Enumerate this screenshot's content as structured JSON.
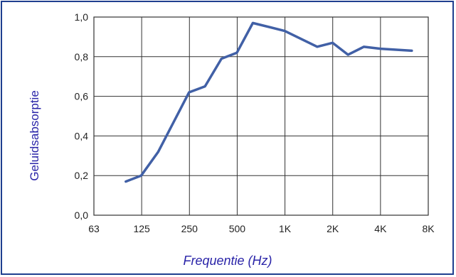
{
  "chart_data": {
    "type": "line",
    "xlabel": "Frequentie (Hz)",
    "ylabel": "Geluidsabsorptie",
    "x_tick_labels": [
      "63",
      "125",
      "250",
      "500",
      "1K",
      "2K",
      "4K",
      "8K"
    ],
    "y_tick_labels": [
      "0,0",
      "0,2",
      "0,4",
      "0,6",
      "0,8",
      "1,0"
    ],
    "x_scale": "log2",
    "xlim": [
      63,
      8000
    ],
    "ylim": [
      0,
      1.0
    ],
    "grid": true,
    "series": [
      {
        "x": [
          100,
          125,
          160,
          200,
          250,
          315,
          400,
          500,
          630,
          1000,
          1600,
          2000,
          2500,
          3150,
          4000,
          6300
        ],
        "values": [
          0.17,
          0.2,
          0.32,
          0.47,
          0.62,
          0.65,
          0.79,
          0.82,
          0.97,
          0.93,
          0.85,
          0.87,
          0.81,
          0.85,
          0.84,
          0.83
        ]
      }
    ],
    "colors": {
      "line": "#4160a6",
      "axis_label": "#2a24a8",
      "frame": "#1f3f8f",
      "grid": "#333333"
    }
  }
}
